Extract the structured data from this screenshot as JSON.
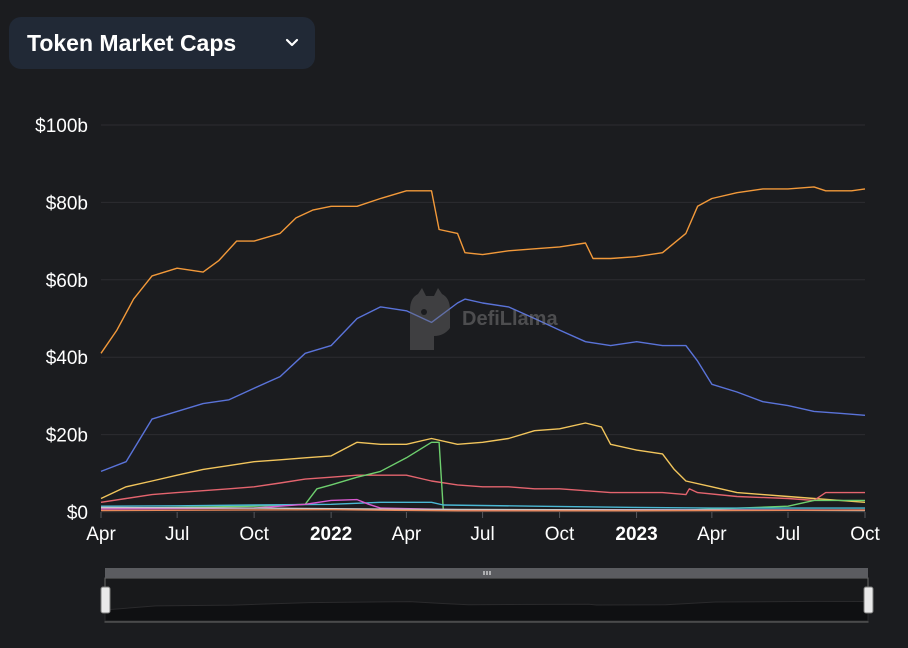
{
  "selector": {
    "label": "Token Market Caps"
  },
  "icons": {
    "dropdown": "chevron-down-icon",
    "watermark": "defillama-logo"
  },
  "watermark": {
    "text": "DefiLlama"
  },
  "colors": {
    "background": "#1b1c1f",
    "grid": "#2c2d31",
    "selector_bg": "#212936"
  },
  "chart_data": {
    "type": "line",
    "ylim": [
      0,
      100
    ],
    "y_ticks": [
      0,
      20,
      40,
      60,
      80,
      100
    ],
    "y_tick_labels": [
      "$0",
      "$20b",
      "$40b",
      "$60b",
      "$80b",
      "$100b"
    ],
    "x_range": [
      "2021-04-01",
      "2023-10-01"
    ],
    "x_tick_labels": [
      {
        "date": "2021-04-01",
        "label": "Apr",
        "bold": false
      },
      {
        "date": "2021-07-01",
        "label": "Jul",
        "bold": false
      },
      {
        "date": "2021-10-01",
        "label": "Oct",
        "bold": false
      },
      {
        "date": "2022-01-01",
        "label": "2022",
        "bold": true
      },
      {
        "date": "2022-04-01",
        "label": "Apr",
        "bold": false
      },
      {
        "date": "2022-07-01",
        "label": "Jul",
        "bold": false
      },
      {
        "date": "2022-10-01",
        "label": "Oct",
        "bold": false
      },
      {
        "date": "2023-01-01",
        "label": "2023",
        "bold": true
      },
      {
        "date": "2023-04-01",
        "label": "Apr",
        "bold": false
      },
      {
        "date": "2023-07-01",
        "label": "Jul",
        "bold": false
      },
      {
        "date": "2023-10-01",
        "label": "Oct",
        "bold": false
      }
    ],
    "grid": true,
    "series": [
      {
        "color": "#f2993a",
        "points": [
          [
            "2021-04-01",
            41
          ],
          [
            "2021-04-20",
            47
          ],
          [
            "2021-05-10",
            55
          ],
          [
            "2021-06-01",
            61
          ],
          [
            "2021-07-01",
            63
          ],
          [
            "2021-08-01",
            62
          ],
          [
            "2021-08-20",
            65
          ],
          [
            "2021-09-10",
            70
          ],
          [
            "2021-10-01",
            70
          ],
          [
            "2021-11-01",
            72
          ],
          [
            "2021-11-20",
            76
          ],
          [
            "2021-12-10",
            78
          ],
          [
            "2022-01-01",
            79
          ],
          [
            "2022-02-01",
            79
          ],
          [
            "2022-03-01",
            81
          ],
          [
            "2022-04-01",
            83
          ],
          [
            "2022-05-01",
            83
          ],
          [
            "2022-05-10",
            73
          ],
          [
            "2022-06-01",
            72
          ],
          [
            "2022-06-10",
            67
          ],
          [
            "2022-07-01",
            66.5
          ],
          [
            "2022-08-01",
            67.5
          ],
          [
            "2022-09-01",
            68
          ],
          [
            "2022-10-01",
            68.5
          ],
          [
            "2022-11-01",
            69.5
          ],
          [
            "2022-11-10",
            65.5
          ],
          [
            "2022-12-01",
            65.5
          ],
          [
            "2023-01-01",
            66
          ],
          [
            "2023-02-01",
            67
          ],
          [
            "2023-03-01",
            72
          ],
          [
            "2023-03-15",
            79
          ],
          [
            "2023-04-01",
            81
          ],
          [
            "2023-05-01",
            82.5
          ],
          [
            "2023-06-01",
            83.5
          ],
          [
            "2023-07-01",
            83.5
          ],
          [
            "2023-08-01",
            84
          ],
          [
            "2023-08-15",
            83
          ],
          [
            "2023-09-15",
            83
          ],
          [
            "2023-10-01",
            83.5
          ]
        ]
      },
      {
        "color": "#5a73d9",
        "points": [
          [
            "2021-04-01",
            10.5
          ],
          [
            "2021-05-01",
            13
          ],
          [
            "2021-06-01",
            24
          ],
          [
            "2021-07-01",
            26
          ],
          [
            "2021-08-01",
            28
          ],
          [
            "2021-09-01",
            29
          ],
          [
            "2021-10-01",
            32
          ],
          [
            "2021-11-01",
            35
          ],
          [
            "2021-12-01",
            41
          ],
          [
            "2022-01-01",
            43
          ],
          [
            "2022-02-01",
            50
          ],
          [
            "2022-03-01",
            53
          ],
          [
            "2022-04-01",
            52
          ],
          [
            "2022-05-01",
            49
          ],
          [
            "2022-06-01",
            54
          ],
          [
            "2022-06-10",
            55
          ],
          [
            "2022-07-01",
            54
          ],
          [
            "2022-08-01",
            53
          ],
          [
            "2022-09-01",
            50
          ],
          [
            "2022-10-01",
            47
          ],
          [
            "2022-11-01",
            44
          ],
          [
            "2022-12-01",
            43
          ],
          [
            "2023-01-01",
            44
          ],
          [
            "2023-02-01",
            43
          ],
          [
            "2023-03-01",
            43
          ],
          [
            "2023-03-15",
            39
          ],
          [
            "2023-04-01",
            33
          ],
          [
            "2023-05-01",
            31
          ],
          [
            "2023-06-01",
            28.5
          ],
          [
            "2023-07-01",
            27.5
          ],
          [
            "2023-08-01",
            26
          ],
          [
            "2023-09-01",
            25.5
          ],
          [
            "2023-10-01",
            25
          ]
        ]
      },
      {
        "color": "#f2c55c",
        "points": [
          [
            "2021-04-01",
            3.5
          ],
          [
            "2021-05-01",
            6.5
          ],
          [
            "2021-06-01",
            8
          ],
          [
            "2021-07-01",
            9.5
          ],
          [
            "2021-08-01",
            11
          ],
          [
            "2021-09-01",
            12
          ],
          [
            "2021-10-01",
            13
          ],
          [
            "2021-11-01",
            13.5
          ],
          [
            "2021-12-01",
            14
          ],
          [
            "2022-01-01",
            14.5
          ],
          [
            "2022-02-01",
            18
          ],
          [
            "2022-03-01",
            17.5
          ],
          [
            "2022-04-01",
            17.5
          ],
          [
            "2022-05-01",
            19
          ],
          [
            "2022-06-01",
            17.5
          ],
          [
            "2022-07-01",
            18
          ],
          [
            "2022-08-01",
            19
          ],
          [
            "2022-09-01",
            21
          ],
          [
            "2022-10-01",
            21.5
          ],
          [
            "2022-11-01",
            23
          ],
          [
            "2022-11-20",
            22
          ],
          [
            "2022-12-01",
            17.5
          ],
          [
            "2023-01-01",
            16
          ],
          [
            "2023-02-01",
            15
          ],
          [
            "2023-02-15",
            11
          ],
          [
            "2023-03-01",
            8
          ],
          [
            "2023-04-01",
            6.5
          ],
          [
            "2023-05-01",
            5
          ],
          [
            "2023-06-01",
            4.5
          ],
          [
            "2023-07-01",
            4
          ],
          [
            "2023-08-01",
            3.5
          ],
          [
            "2023-09-01",
            3
          ],
          [
            "2023-10-01",
            2.5
          ]
        ]
      },
      {
        "color": "#e4646e",
        "points": [
          [
            "2021-04-01",
            2.5
          ],
          [
            "2021-05-01",
            3.5
          ],
          [
            "2021-06-01",
            4.5
          ],
          [
            "2021-07-01",
            5
          ],
          [
            "2021-08-01",
            5.5
          ],
          [
            "2021-09-01",
            6
          ],
          [
            "2021-10-01",
            6.5
          ],
          [
            "2021-11-01",
            7.5
          ],
          [
            "2021-12-01",
            8.5
          ],
          [
            "2022-01-01",
            9
          ],
          [
            "2022-02-01",
            9.5
          ],
          [
            "2022-03-01",
            9.5
          ],
          [
            "2022-04-01",
            9.5
          ],
          [
            "2022-05-01",
            8
          ],
          [
            "2022-06-01",
            7
          ],
          [
            "2022-07-01",
            6.5
          ],
          [
            "2022-08-01",
            6.5
          ],
          [
            "2022-09-01",
            6
          ],
          [
            "2022-10-01",
            6
          ],
          [
            "2022-11-01",
            5.5
          ],
          [
            "2022-12-01",
            5
          ],
          [
            "2023-01-01",
            5
          ],
          [
            "2023-02-01",
            5
          ],
          [
            "2023-03-01",
            4.5
          ],
          [
            "2023-03-05",
            6
          ],
          [
            "2023-03-15",
            5
          ],
          [
            "2023-05-01",
            4
          ],
          [
            "2023-07-01",
            3.5
          ],
          [
            "2023-08-01",
            3
          ],
          [
            "2023-08-15",
            5
          ],
          [
            "2023-10-01",
            5
          ]
        ]
      },
      {
        "color": "#6ecf6e",
        "points": [
          [
            "2021-04-01",
            1
          ],
          [
            "2021-07-01",
            1.2
          ],
          [
            "2021-10-01",
            1.5
          ],
          [
            "2021-12-01",
            2
          ],
          [
            "2021-12-15",
            6
          ],
          [
            "2022-01-01",
            7
          ],
          [
            "2022-02-01",
            9
          ],
          [
            "2022-03-01",
            10.5
          ],
          [
            "2022-04-01",
            14
          ],
          [
            "2022-05-01",
            18
          ],
          [
            "2022-05-10",
            18
          ],
          [
            "2022-05-15",
            0.5
          ],
          [
            "2022-10-01",
            0.5
          ],
          [
            "2023-03-01",
            0.5
          ],
          [
            "2023-07-01",
            1.5
          ],
          [
            "2023-08-01",
            3
          ],
          [
            "2023-10-01",
            3
          ]
        ]
      },
      {
        "color": "#4bb8d4",
        "points": [
          [
            "2021-04-01",
            1.5
          ],
          [
            "2021-07-01",
            1.6
          ],
          [
            "2021-10-01",
            1.8
          ],
          [
            "2022-01-01",
            2
          ],
          [
            "2022-03-01",
            2.5
          ],
          [
            "2022-05-01",
            2.5
          ],
          [
            "2022-05-15",
            1.8
          ],
          [
            "2022-09-01",
            1.5
          ],
          [
            "2023-01-01",
            1.2
          ],
          [
            "2023-04-01",
            1
          ],
          [
            "2023-10-01",
            1
          ]
        ]
      },
      {
        "color": "#d85ad0",
        "points": [
          [
            "2021-04-01",
            0.8
          ],
          [
            "2021-10-01",
            1
          ],
          [
            "2021-12-01",
            2
          ],
          [
            "2022-01-01",
            3
          ],
          [
            "2022-02-01",
            3.2
          ],
          [
            "2022-02-15",
            2
          ],
          [
            "2022-03-01",
            1
          ],
          [
            "2022-06-01",
            0.6
          ],
          [
            "2023-10-01",
            0.5
          ]
        ]
      },
      {
        "color": "#c7c7c7",
        "points": [
          [
            "2021-04-01",
            1.2
          ],
          [
            "2021-10-01",
            1
          ],
          [
            "2022-04-01",
            0.7
          ],
          [
            "2023-04-01",
            0.5
          ],
          [
            "2023-10-01",
            0.4
          ]
        ]
      },
      {
        "color": "#e8885a",
        "points": [
          [
            "2021-04-01",
            0.4
          ],
          [
            "2022-01-01",
            0.6
          ],
          [
            "2022-06-01",
            0.3
          ],
          [
            "2023-01-01",
            0.3
          ],
          [
            "2023-10-01",
            0.5
          ]
        ]
      }
    ],
    "overview": {
      "points": [
        [
          "2021-04-01",
          41
        ],
        [
          "2021-06-01",
          61
        ],
        [
          "2021-09-01",
          65
        ],
        [
          "2021-12-01",
          78
        ],
        [
          "2022-04-01",
          83
        ],
        [
          "2022-05-10",
          73
        ],
        [
          "2022-06-10",
          67
        ],
        [
          "2022-11-01",
          69.5
        ],
        [
          "2022-11-10",
          65.5
        ],
        [
          "2023-02-01",
          67
        ],
        [
          "2023-04-01",
          81
        ],
        [
          "2023-08-01",
          84
        ],
        [
          "2023-10-01",
          83.5
        ]
      ],
      "ylim": [
        0,
        100
      ]
    }
  }
}
